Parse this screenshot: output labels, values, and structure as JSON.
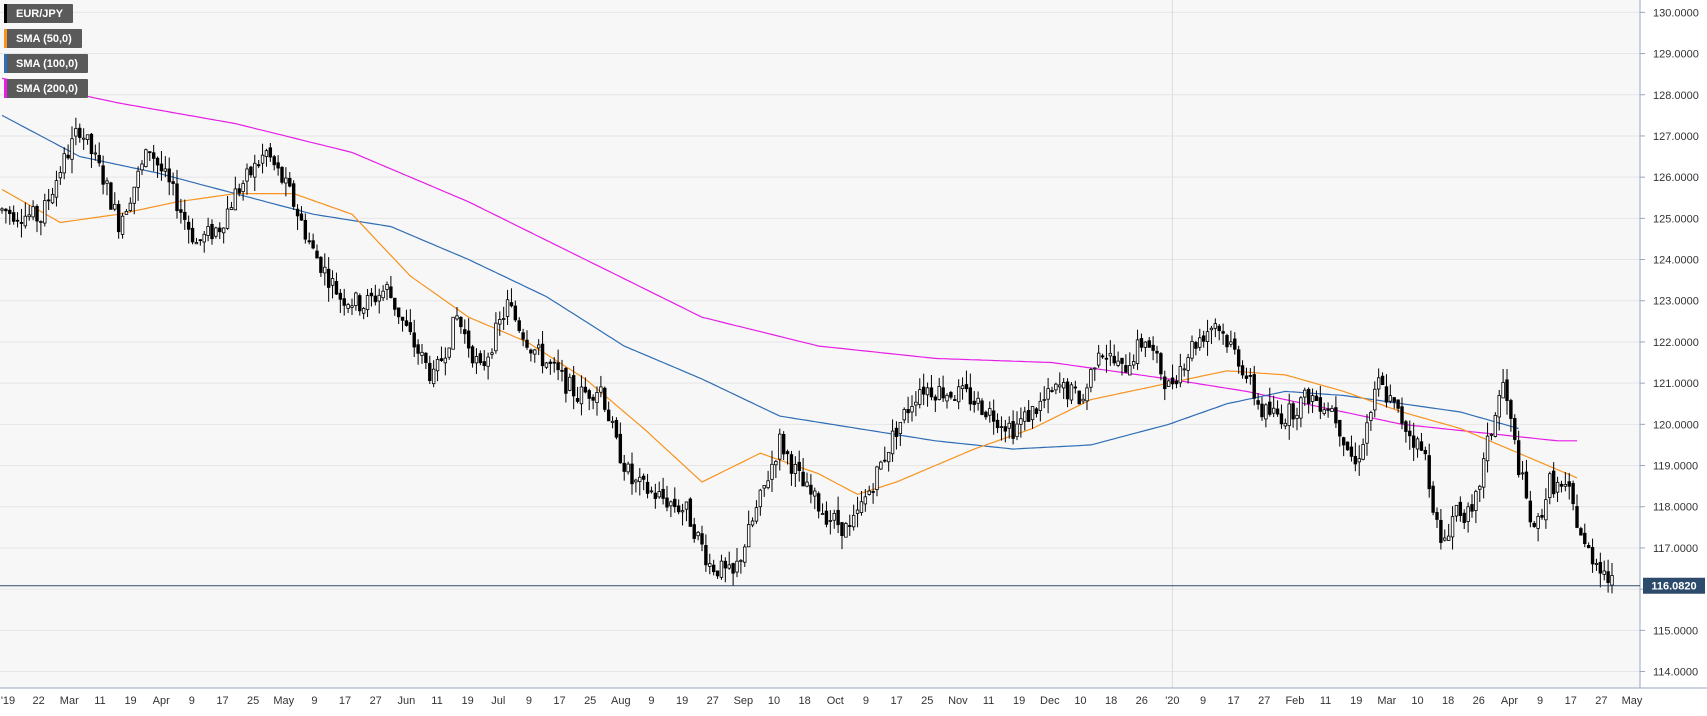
{
  "chart_data": {
    "type": "candlestick",
    "symbol": "EUR/JPY",
    "legend": [
      {
        "label": "EUR/JPY",
        "color": "#000000"
      },
      {
        "label": "SMA (50,0)",
        "color": "#f7931e"
      },
      {
        "label": "SMA (100,0)",
        "color": "#2f6db5"
      },
      {
        "label": "SMA (200,0)",
        "color": "#e61ee6"
      }
    ],
    "current_price": "116.0820",
    "ylim": [
      113.6,
      130.3
    ],
    "y_ticks": [
      "130.0000",
      "129.0000",
      "128.0000",
      "127.0000",
      "126.0000",
      "125.0000",
      "124.0000",
      "123.0000",
      "122.0000",
      "121.0000",
      "120.0000",
      "119.0000",
      "118.0000",
      "117.0000",
      "116.0000",
      "115.0000",
      "114.0000"
    ],
    "x_ticks": [
      "'19",
      "22",
      "Mar",
      "11",
      "19",
      "Apr",
      "9",
      "17",
      "25",
      "May",
      "9",
      "17",
      "27",
      "Jun",
      "11",
      "19",
      "Jul",
      "9",
      "17",
      "25",
      "Aug",
      "9",
      "19",
      "27",
      "Sep",
      "10",
      "18",
      "Oct",
      "9",
      "17",
      "25",
      "Nov",
      "11",
      "19",
      "Dec",
      "10",
      "18",
      "26",
      "'20",
      "9",
      "17",
      "27",
      "Feb",
      "11",
      "19",
      "Mar",
      "10",
      "18",
      "26",
      "Apr",
      "9",
      "17",
      "27",
      "May"
    ],
    "grid": true,
    "colors": {
      "up": "#ffffff",
      "down": "#000000",
      "wick": "#000000",
      "sma50": "#f7931e",
      "sma100": "#2f6db5",
      "sma200": "#e61ee6",
      "price_line": "#2c4a6b",
      "price_label_bg": "#2c4a6b"
    },
    "price_anchors": [
      [
        0,
        125.2
      ],
      [
        10,
        125.0
      ],
      [
        15,
        126.2
      ],
      [
        20,
        127.2
      ],
      [
        26,
        126.0
      ],
      [
        30,
        124.9
      ],
      [
        38,
        126.7
      ],
      [
        44,
        125.6
      ],
      [
        50,
        124.4
      ],
      [
        56,
        124.8
      ],
      [
        60,
        125.6
      ],
      [
        68,
        126.6
      ],
      [
        74,
        125.6
      ],
      [
        80,
        124.2
      ],
      [
        87,
        123.1
      ],
      [
        93,
        122.9
      ],
      [
        99,
        123.3
      ],
      [
        105,
        122.1
      ],
      [
        111,
        121.1
      ],
      [
        117,
        122.6
      ],
      [
        123,
        121.3
      ],
      [
        130,
        122.9
      ],
      [
        136,
        121.9
      ],
      [
        142,
        121.3
      ],
      [
        148,
        120.7
      ],
      [
        154,
        120.9
      ],
      [
        158,
        119.5
      ],
      [
        162,
        118.6
      ],
      [
        168,
        118.3
      ],
      [
        176,
        117.9
      ],
      [
        182,
        116.6
      ],
      [
        188,
        116.3
      ],
      [
        194,
        117.9
      ],
      [
        200,
        119.6
      ],
      [
        206,
        118.5
      ],
      [
        212,
        117.8
      ],
      [
        218,
        117.4
      ],
      [
        224,
        118.6
      ],
      [
        230,
        119.9
      ],
      [
        236,
        120.9
      ],
      [
        242,
        120.8
      ],
      [
        248,
        120.7
      ],
      [
        254,
        120.3
      ],
      [
        260,
        119.9
      ],
      [
        266,
        120.4
      ],
      [
        272,
        120.9
      ],
      [
        278,
        120.6
      ],
      [
        282,
        121.9
      ],
      [
        288,
        121.3
      ],
      [
        294,
        122.1
      ],
      [
        300,
        120.9
      ],
      [
        306,
        121.9
      ],
      [
        312,
        122.5
      ],
      [
        318,
        121.6
      ],
      [
        324,
        120.3
      ],
      [
        330,
        120.2
      ],
      [
        336,
        120.7
      ],
      [
        342,
        120.4
      ],
      [
        348,
        119.0
      ],
      [
        354,
        121.0
      ],
      [
        360,
        120.1
      ],
      [
        366,
        119.2
      ],
      [
        370,
        117.0
      ],
      [
        374,
        118.0
      ],
      [
        378,
        117.7
      ],
      [
        382,
        119.5
      ],
      [
        386,
        121.0
      ],
      [
        390,
        119.0
      ],
      [
        394,
        117.3
      ],
      [
        398,
        118.6
      ],
      [
        403,
        118.3
      ],
      [
        407,
        117.0
      ],
      [
        411,
        116.6
      ],
      [
        414,
        116.1
      ]
    ],
    "sma50_anchors": [
      [
        0,
        125.7
      ],
      [
        15,
        124.9
      ],
      [
        30,
        125.1
      ],
      [
        45,
        125.4
      ],
      [
        60,
        125.6
      ],
      [
        75,
        125.6
      ],
      [
        90,
        125.1
      ],
      [
        105,
        123.6
      ],
      [
        120,
        122.6
      ],
      [
        135,
        122.0
      ],
      [
        150,
        121.1
      ],
      [
        165,
        119.9
      ],
      [
        180,
        118.6
      ],
      [
        195,
        119.3
      ],
      [
        210,
        118.8
      ],
      [
        220,
        118.3
      ],
      [
        230,
        118.6
      ],
      [
        250,
        119.4
      ],
      [
        265,
        119.9
      ],
      [
        280,
        120.6
      ],
      [
        300,
        121.0
      ],
      [
        315,
        121.3
      ],
      [
        330,
        121.2
      ],
      [
        345,
        120.8
      ],
      [
        360,
        120.3
      ],
      [
        375,
        119.9
      ],
      [
        390,
        119.3
      ],
      [
        405,
        118.7
      ]
    ],
    "sma100_anchors": [
      [
        0,
        127.5
      ],
      [
        20,
        126.5
      ],
      [
        40,
        126.1
      ],
      [
        60,
        125.6
      ],
      [
        80,
        125.1
      ],
      [
        100,
        124.8
      ],
      [
        120,
        124.0
      ],
      [
        140,
        123.1
      ],
      [
        160,
        121.9
      ],
      [
        180,
        121.1
      ],
      [
        200,
        120.2
      ],
      [
        220,
        119.9
      ],
      [
        240,
        119.6
      ],
      [
        260,
        119.4
      ],
      [
        280,
        119.5
      ],
      [
        300,
        120.0
      ],
      [
        315,
        120.5
      ],
      [
        330,
        120.8
      ],
      [
        345,
        120.7
      ],
      [
        360,
        120.5
      ],
      [
        375,
        120.3
      ],
      [
        390,
        119.9
      ]
    ],
    "sma200_anchors": [
      [
        0,
        128.4
      ],
      [
        30,
        127.8
      ],
      [
        60,
        127.3
      ],
      [
        90,
        126.6
      ],
      [
        120,
        125.4
      ],
      [
        150,
        124.0
      ],
      [
        180,
        122.6
      ],
      [
        210,
        121.9
      ],
      [
        240,
        121.6
      ],
      [
        270,
        121.5
      ],
      [
        300,
        121.1
      ],
      [
        320,
        120.8
      ],
      [
        340,
        120.4
      ],
      [
        360,
        120.0
      ],
      [
        380,
        119.8
      ],
      [
        400,
        119.6
      ],
      [
        405,
        119.6
      ]
    ]
  }
}
